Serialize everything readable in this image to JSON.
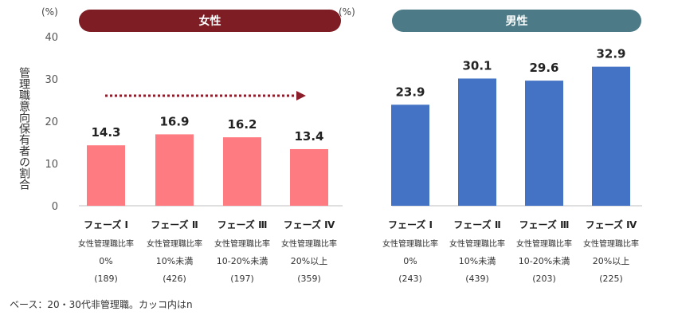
{
  "colors": {
    "female_pill": "#7f1d24",
    "male_pill": "#4c7a87",
    "female_bar": "#ff7b82",
    "male_bar": "#4472c4",
    "arrow": "#8b1e2a"
  },
  "units": {
    "female": "(%)",
    "male": "(%)"
  },
  "ylabel": "管理職意向保有者の割合",
  "footnote": "ベース：20・30代非管理職。カッコ内はn",
  "chart_data": [
    {
      "type": "bar",
      "title": "女性",
      "ylabel": "管理職意向保有者の割合",
      "unit": "(%)",
      "ylim": [
        0,
        40
      ],
      "yticks": [
        "0",
        "10",
        "20",
        "30",
        "40"
      ],
      "grid": false,
      "categories": [
        "フェーズ Ⅰ",
        "フェーズ Ⅱ",
        "フェーズ Ⅲ",
        "フェーズ Ⅳ"
      ],
      "sublabels": [
        "女性管理職比率",
        "女性管理職比率",
        "女性管理職比率",
        "女性管理職比率"
      ],
      "ratio_labels": [
        "0%",
        "10%未満",
        "10-20%未満",
        "20%以上"
      ],
      "n_labels": [
        "(189)",
        "(426)",
        "(197)",
        "(359)"
      ],
      "values": [
        14.3,
        16.9,
        16.2,
        13.4
      ],
      "value_labels": [
        "14.3",
        "16.9",
        "16.2",
        "13.4"
      ]
    },
    {
      "type": "bar",
      "title": "男性",
      "unit": "(%)",
      "ylim": [
        0,
        40
      ],
      "grid": false,
      "categories": [
        "フェーズ Ⅰ",
        "フェーズ Ⅱ",
        "フェーズ Ⅲ",
        "フェーズ Ⅳ"
      ],
      "sublabels": [
        "女性管理職比率",
        "女性管理職比率",
        "女性管理職比率",
        "女性管理職比率"
      ],
      "ratio_labels": [
        "0%",
        "10%未満",
        "10-20%未満",
        "20%以上"
      ],
      "n_labels": [
        "(243)",
        "(439)",
        "(203)",
        "(225)"
      ],
      "values": [
        23.9,
        30.1,
        29.6,
        32.9
      ],
      "value_labels": [
        "23.9",
        "30.1",
        "29.6",
        "32.9"
      ]
    }
  ]
}
